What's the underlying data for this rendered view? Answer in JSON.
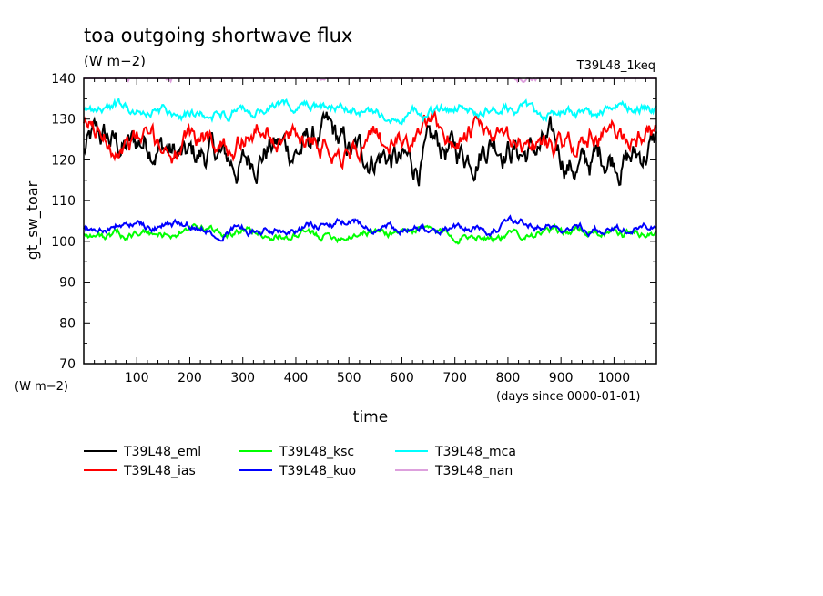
{
  "chart_data": {
    "type": "line",
    "title": "toa outgoing shortwave flux",
    "subtitle": "(W m−2)",
    "run_label": "T39L48_1keq",
    "ylabel": "gt_sw_toar",
    "yunit": "(W m−2)",
    "xlabel": "time",
    "xunit": "(days since 0000-01-01)",
    "xlim": [
      0,
      1080
    ],
    "ylim": [
      70,
      140
    ],
    "xticks": [
      100,
      200,
      300,
      400,
      500,
      600,
      700,
      800,
      900,
      1000
    ],
    "yticks": [
      70,
      80,
      90,
      100,
      110,
      120,
      130,
      140
    ],
    "grid": false,
    "legend_placement": "below",
    "series": [
      {
        "name": "T39L48_eml",
        "color": "#000000",
        "mean": 122,
        "variability": 6
      },
      {
        "name": "T39L48_ias",
        "color": "#ff0000",
        "mean": 125,
        "variability": 4
      },
      {
        "name": "T39L48_ksc",
        "color": "#00ff00",
        "mean": 102,
        "variability": 1.5
      },
      {
        "name": "T39L48_kuo",
        "color": "#0000ff",
        "mean": 103.5,
        "variability": 1.5
      },
      {
        "name": "T39L48_mca",
        "color": "#00ffff",
        "mean": 132,
        "variability": 2
      },
      {
        "name": "T39L48_nan",
        "color": "#dda0dd",
        "mean": 141.5,
        "variability": 1.5
      }
    ]
  }
}
